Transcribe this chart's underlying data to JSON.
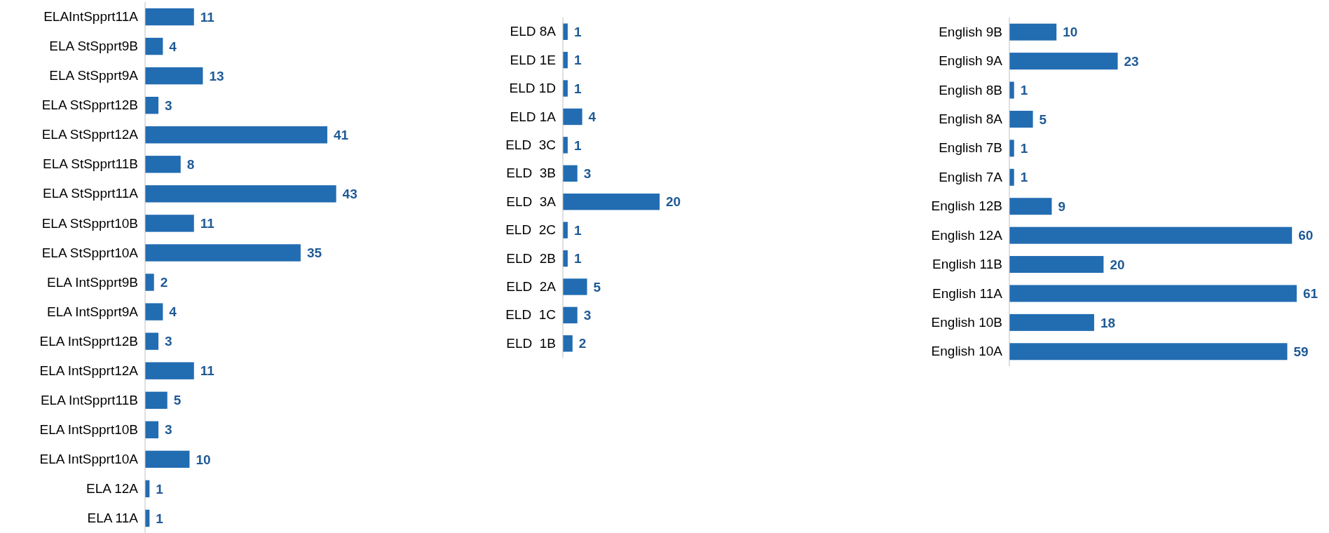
{
  "chart_data": [
    {
      "type": "bar",
      "orientation": "horizontal",
      "categories": [
        "ELAIntSpprt11A",
        "ELA StSpprt9B",
        "ELA StSpprt9A",
        "ELA StSpprt12B",
        "ELA StSpprt12A",
        "ELA StSpprt11B",
        "ELA StSpprt11A",
        "ELA StSpprt10B",
        "ELA StSpprt10A",
        "ELA IntSpprt9B",
        "ELA IntSpprt9A",
        "ELA IntSpprt12B",
        "ELA IntSpprt12A",
        "ELA IntSpprt11B",
        "ELA IntSpprt10B",
        "ELA IntSpprt10A",
        "ELA 12A",
        "ELA 11A"
      ],
      "values": [
        11,
        4,
        13,
        3,
        41,
        8,
        43,
        11,
        35,
        2,
        4,
        3,
        11,
        5,
        3,
        10,
        1,
        1
      ],
      "color": "#226cb2",
      "data_labels": true
    },
    {
      "type": "bar",
      "orientation": "horizontal",
      "categories": [
        "ELD 8A",
        "ELD 1E",
        "ELD 1D",
        "ELD 1A",
        "ELD  3C",
        "ELD  3B",
        "ELD  3A",
        "ELD  2C",
        "ELD  2B",
        "ELD  2A",
        "ELD  1C",
        "ELD  1B"
      ],
      "values": [
        1,
        1,
        1,
        4,
        1,
        3,
        20,
        1,
        1,
        5,
        3,
        2
      ],
      "color": "#226cb2",
      "data_labels": true
    },
    {
      "type": "bar",
      "orientation": "horizontal",
      "categories": [
        "English 9B",
        "English 9A",
        "English 8B",
        "English 8A",
        "English 7B",
        "English 7A",
        "English 12B",
        "English 12A",
        "English 11B",
        "English 11A",
        "English 10B",
        "English 10A"
      ],
      "values": [
        10,
        23,
        1,
        5,
        1,
        1,
        9,
        60,
        20,
        61,
        18,
        59
      ],
      "color": "#226cb2",
      "data_labels": true
    }
  ]
}
